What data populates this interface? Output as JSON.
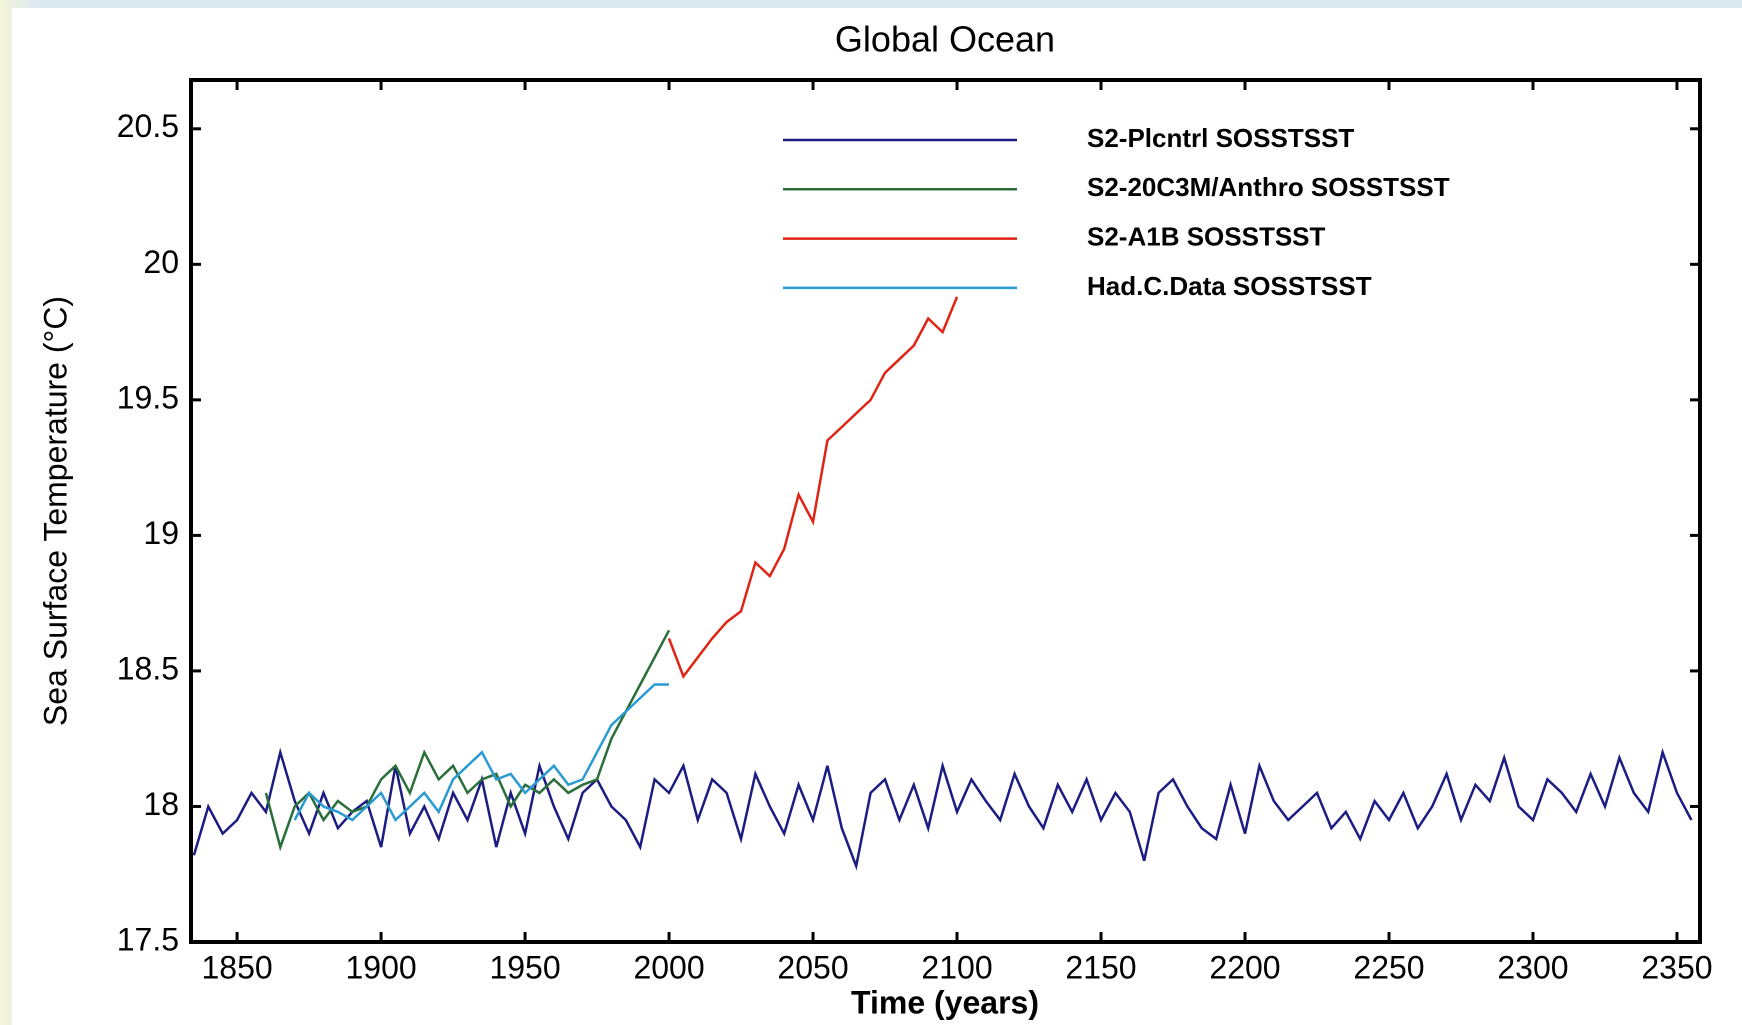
{
  "chart_data": {
    "type": "line",
    "title": "Global Ocean",
    "x_label": "Time (years)",
    "y_label": "Sea Surface Temperature (°C)",
    "xlim": [
      1834,
      2358
    ],
    "ylim": [
      17.5,
      20.68
    ],
    "xticks": [
      1850,
      1900,
      1950,
      2000,
      2050,
      2100,
      2150,
      2200,
      2250,
      2300,
      2350
    ],
    "yticks": [
      17.5,
      18,
      18.5,
      19,
      19.5,
      20,
      20.5
    ],
    "grid": false,
    "legend": "top",
    "series": [
      {
        "name": "S2-Plcntrl SOSSTSST",
        "color": "#1c1c82",
        "x": [
          1835,
          1840,
          1845,
          1850,
          1855,
          1860,
          1865,
          1870,
          1875,
          1880,
          1885,
          1890,
          1895,
          1900,
          1905,
          1910,
          1915,
          1920,
          1925,
          1930,
          1935,
          1940,
          1945,
          1950,
          1955,
          1960,
          1965,
          1970,
          1975,
          1980,
          1985,
          1990,
          1995,
          2000,
          2005,
          2010,
          2015,
          2020,
          2025,
          2030,
          2035,
          2040,
          2045,
          2050,
          2055,
          2060,
          2065,
          2070,
          2075,
          2080,
          2085,
          2090,
          2095,
          2100,
          2105,
          2110,
          2115,
          2120,
          2125,
          2130,
          2135,
          2140,
          2145,
          2150,
          2155,
          2160,
          2165,
          2170,
          2175,
          2180,
          2185,
          2190,
          2195,
          2200,
          2205,
          2210,
          2215,
          2220,
          2225,
          2230,
          2235,
          2240,
          2245,
          2250,
          2255,
          2260,
          2265,
          2270,
          2275,
          2280,
          2285,
          2290,
          2295,
          2300,
          2305,
          2310,
          2315,
          2320,
          2325,
          2330,
          2335,
          2340,
          2345,
          2350,
          2355
        ],
        "values": [
          17.82,
          18.0,
          17.9,
          17.95,
          18.05,
          17.98,
          18.2,
          18.02,
          17.9,
          18.05,
          17.92,
          17.98,
          18.02,
          17.85,
          18.15,
          17.9,
          18.0,
          17.88,
          18.05,
          17.95,
          18.1,
          17.85,
          18.05,
          17.9,
          18.15,
          18.0,
          17.88,
          18.05,
          18.1,
          18.0,
          17.95,
          17.85,
          18.1,
          18.05,
          18.15,
          17.95,
          18.1,
          18.05,
          17.88,
          18.12,
          18.0,
          17.9,
          18.08,
          17.95,
          18.15,
          17.92,
          17.78,
          18.05,
          18.1,
          17.95,
          18.08,
          17.92,
          18.15,
          17.98,
          18.1,
          18.02,
          17.95,
          18.12,
          18.0,
          17.92,
          18.08,
          17.98,
          18.1,
          17.95,
          18.05,
          17.98,
          17.8,
          18.05,
          18.1,
          18.0,
          17.92,
          17.88,
          18.08,
          17.9,
          18.15,
          18.02,
          17.95,
          18.0,
          18.05,
          17.92,
          17.98,
          17.88,
          18.02,
          17.95,
          18.05,
          17.92,
          18.0,
          18.12,
          17.95,
          18.08,
          18.02,
          18.18,
          18.0,
          17.95,
          18.1,
          18.05,
          17.98,
          18.12,
          18.0,
          18.18,
          18.05,
          17.98,
          18.2,
          18.05,
          17.95
        ]
      },
      {
        "name": "S2-20C3M/Anthro SOSSTSST",
        "color": "#2a6e3a",
        "x": [
          1860,
          1865,
          1870,
          1875,
          1880,
          1885,
          1890,
          1895,
          1900,
          1905,
          1910,
          1915,
          1920,
          1925,
          1930,
          1935,
          1940,
          1945,
          1950,
          1955,
          1960,
          1965,
          1970,
          1975,
          1980,
          1985,
          1990,
          1995,
          2000
        ],
        "values": [
          18.05,
          17.85,
          18.0,
          18.05,
          17.95,
          18.02,
          17.98,
          18.0,
          18.1,
          18.15,
          18.05,
          18.2,
          18.1,
          18.15,
          18.05,
          18.1,
          18.12,
          18.0,
          18.08,
          18.05,
          18.1,
          18.05,
          18.08,
          18.1,
          18.25,
          18.35,
          18.45,
          18.55,
          18.65
        ]
      },
      {
        "name": "S2-A1B SOSSTSST",
        "color": "#e02414",
        "x": [
          2000,
          2005,
          2010,
          2015,
          2020,
          2025,
          2030,
          2035,
          2040,
          2045,
          2050,
          2055,
          2060,
          2065,
          2070,
          2075,
          2080,
          2085,
          2090,
          2095,
          2100
        ],
        "values": [
          18.62,
          18.48,
          18.55,
          18.62,
          18.68,
          18.72,
          18.9,
          18.85,
          18.95,
          19.15,
          19.05,
          19.35,
          19.4,
          19.45,
          19.5,
          19.6,
          19.65,
          19.7,
          19.8,
          19.75,
          19.88
        ]
      },
      {
        "name": "Had.C.Data SOSSTSST",
        "color": "#2a9ad2",
        "x": [
          1870,
          1875,
          1880,
          1885,
          1890,
          1895,
          1900,
          1905,
          1910,
          1915,
          1920,
          1925,
          1930,
          1935,
          1940,
          1945,
          1950,
          1955,
          1960,
          1965,
          1970,
          1975,
          1980,
          1985,
          1990,
          1995,
          2000
        ],
        "values": [
          17.95,
          18.05,
          18.0,
          17.98,
          17.95,
          18.0,
          18.05,
          17.95,
          18.0,
          18.05,
          17.98,
          18.1,
          18.15,
          18.2,
          18.1,
          18.12,
          18.05,
          18.1,
          18.15,
          18.08,
          18.1,
          18.2,
          18.3,
          18.35,
          18.4,
          18.45,
          18.45
        ]
      }
    ]
  }
}
